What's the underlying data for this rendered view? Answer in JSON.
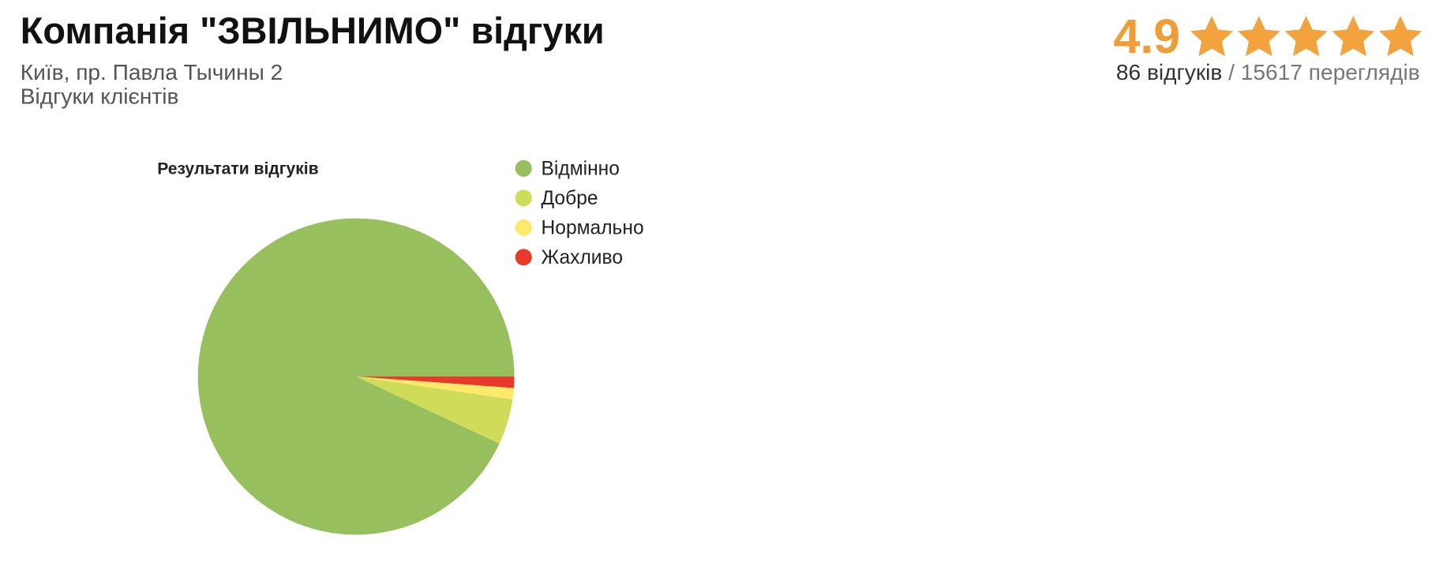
{
  "header": {
    "title": "Компанія \"ЗВІЛЬНИМО\" відгуки",
    "address": "Київ, пр. Павла Тычины 2",
    "subtitle": "Відгуки клієнтів",
    "rating": "4.9",
    "reviews": "86 відгуків",
    "views": "/ 15617 переглядів"
  },
  "chart_data": {
    "type": "pie",
    "title": "Результати відгуків",
    "categories": [
      "Відмінно",
      "Добре",
      "Нормально",
      "Жахливо"
    ],
    "values": [
      80,
      4,
      1,
      1
    ],
    "colors": [
      "#98bf5e",
      "#cfdc5a",
      "#fde96a",
      "#e8392a"
    ],
    "legend": "right"
  }
}
